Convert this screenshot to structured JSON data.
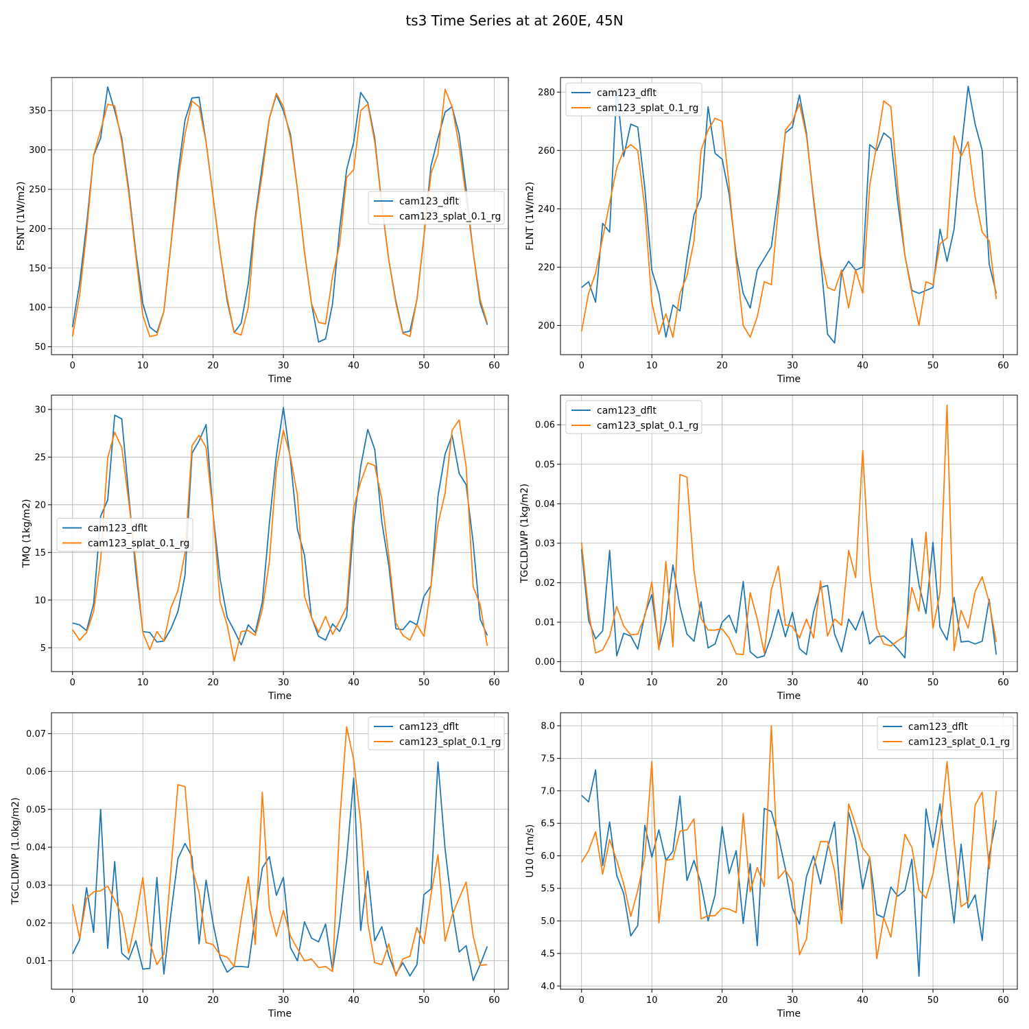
{
  "title": "ts3 Time Series at at 260E, 45N",
  "colors": {
    "series0": "#1f77b4",
    "series1": "#ff7f0e",
    "grid": "#b0b0b0"
  },
  "chart_data": [
    {
      "type": "line",
      "xlabel": "Time",
      "ylabel": "FSNT (1W/m2)",
      "xlim": [
        -3,
        62
      ],
      "ylim": [
        40,
        392
      ],
      "xticks": [
        0,
        10,
        20,
        30,
        40,
        50,
        60
      ],
      "yticks": [
        50,
        100,
        150,
        200,
        250,
        300,
        350
      ],
      "grid": true,
      "legend_position": "center-right",
      "series": [
        {
          "name": "cam123_dflt",
          "values": [
            75,
            130,
            205,
            293,
            315,
            380,
            350,
            315,
            250,
            170,
            105,
            75,
            68,
            95,
            180,
            270,
            338,
            366,
            367,
            310,
            240,
            170,
            108,
            68,
            80,
            130,
            215,
            280,
            340,
            370,
            350,
            320,
            250,
            170,
            105,
            56,
            60,
            105,
            200,
            275,
            310,
            373,
            360,
            315,
            230,
            160,
            108,
            68,
            70,
            110,
            190,
            280,
            315,
            348,
            355,
            320,
            250,
            170,
            105,
            78
          ]
        },
        {
          "name": "cam123_splat_0.1_rg",
          "values": [
            63,
            115,
            195,
            293,
            325,
            358,
            356,
            310,
            245,
            165,
            90,
            63,
            65,
            95,
            180,
            260,
            320,
            362,
            355,
            310,
            240,
            170,
            112,
            68,
            65,
            100,
            210,
            270,
            340,
            372,
            355,
            315,
            250,
            170,
            105,
            81,
            79,
            140,
            180,
            265,
            275,
            350,
            358,
            310,
            230,
            160,
            105,
            67,
            63,
            110,
            190,
            270,
            295,
            377,
            355,
            305,
            240,
            170,
            110,
            80
          ]
        }
      ]
    },
    {
      "type": "line",
      "xlabel": "Time",
      "ylabel": "FLNT (1W/m2)",
      "xlim": [
        -3,
        62
      ],
      "ylim": [
        190,
        285
      ],
      "xticks": [
        0,
        10,
        20,
        30,
        40,
        50,
        60
      ],
      "yticks": [
        200,
        220,
        240,
        260,
        280
      ],
      "grid": true,
      "legend_position": "upper-left",
      "series": [
        {
          "name": "cam123_dflt",
          "values": [
            213,
            215,
            208,
            235,
            232,
            281,
            258,
            269,
            268,
            247,
            219,
            211,
            196,
            207,
            205,
            223,
            238,
            244,
            275,
            259,
            257,
            245,
            224,
            211,
            206,
            219,
            223,
            227,
            245,
            266,
            268,
            279,
            266,
            243,
            223,
            197,
            194,
            218,
            222,
            219,
            220,
            262,
            260,
            266,
            264,
            242,
            224,
            212,
            211,
            212,
            213,
            233,
            222,
            233,
            260,
            282,
            269,
            260,
            221,
            211
          ]
        },
        {
          "name": "cam123_splat_0.1_rg",
          "values": [
            198,
            211,
            218,
            230,
            242,
            254,
            260,
            262,
            260,
            240,
            208,
            197,
            204,
            196,
            211,
            217,
            229,
            260,
            267,
            271,
            270,
            248,
            222,
            200,
            196,
            203,
            215,
            214,
            240,
            267,
            270,
            276,
            265,
            244,
            224,
            213,
            212,
            219,
            206,
            219,
            211,
            248,
            262,
            277,
            275,
            247,
            224,
            211,
            200,
            215,
            214,
            228,
            230,
            265,
            258,
            263,
            244,
            232,
            229,
            209
          ]
        }
      ]
    },
    {
      "type": "line",
      "xlabel": "Time",
      "ylabel": "TMQ (1kg/m2)",
      "xlim": [
        -3,
        62
      ],
      "ylim": [
        2.5,
        31.5
      ],
      "xticks": [
        0,
        10,
        20,
        30,
        40,
        50,
        60
      ],
      "yticks": [
        5,
        10,
        15,
        20,
        25,
        30
      ],
      "grid": true,
      "legend_position": "center-left",
      "series": [
        {
          "name": "cam123_dflt",
          "values": [
            7.6,
            7.4,
            6.8,
            9.6,
            18.8,
            20.5,
            29.4,
            29.0,
            21.0,
            13.0,
            6.7,
            6.6,
            5.6,
            5.7,
            7.0,
            8.8,
            12.6,
            25.4,
            26.7,
            28.4,
            19.0,
            12.2,
            8.2,
            6.8,
            5.3,
            7.4,
            6.6,
            9.8,
            18.0,
            25.2,
            30.2,
            24.7,
            17.4,
            14.7,
            8.2,
            6.2,
            5.8,
            7.5,
            6.7,
            8.3,
            17.9,
            24.0,
            27.9,
            25.8,
            18.2,
            13.6,
            7.0,
            6.9,
            7.8,
            7.4,
            10.4,
            11.5,
            20.9,
            25.3,
            27.3,
            23.3,
            22.1,
            16.0,
            8.0,
            6.3
          ]
        },
        {
          "name": "cam123_splat_0.1_rg",
          "values": [
            6.9,
            5.8,
            6.6,
            8.8,
            14.2,
            24.9,
            27.6,
            26.0,
            20.3,
            14.0,
            6.6,
            4.8,
            6.7,
            5.7,
            9.2,
            11.0,
            15.0,
            26.2,
            27.3,
            26.0,
            19.0,
            9.8,
            7.4,
            3.6,
            6.7,
            6.8,
            6.3,
            9.0,
            14.0,
            23.7,
            27.8,
            25.0,
            21.0,
            10.4,
            8.2,
            6.6,
            8.3,
            6.4,
            7.8,
            9.3,
            19.7,
            22.4,
            24.4,
            24.1,
            20.6,
            14.6,
            7.6,
            6.3,
            5.8,
            7.4,
            6.2,
            11.5,
            18.0,
            21.2,
            27.8,
            28.9,
            24.0,
            11.4,
            9.5,
            5.2
          ]
        }
      ]
    },
    {
      "type": "line",
      "xlabel": "Time",
      "ylabel": "TGCLDLWP (1kg/m2)",
      "xlim": [
        -3,
        62
      ],
      "ylim": [
        -0.0025,
        0.0675
      ],
      "xticks": [
        0,
        10,
        20,
        30,
        40,
        50,
        60
      ],
      "yticks": [
        0.0,
        0.01,
        0.02,
        0.03,
        0.04,
        0.05,
        0.06
      ],
      "grid": true,
      "legend_position": "upper-left",
      "series": [
        {
          "name": "cam123_dflt",
          "values": [
            0.0285,
            0.0105,
            0.0058,
            0.0078,
            0.0282,
            0.0015,
            0.0072,
            0.0065,
            0.0032,
            0.012,
            0.017,
            0.0035,
            0.0105,
            0.0245,
            0.014,
            0.007,
            0.0052,
            0.0152,
            0.0035,
            0.0045,
            0.01,
            0.0118,
            0.0073,
            0.0203,
            0.0025,
            0.001,
            0.0015,
            0.0065,
            0.0132,
            0.0063,
            0.0125,
            0.0033,
            0.0018,
            0.0125,
            0.0188,
            0.0193,
            0.007,
            0.0025,
            0.0108,
            0.008,
            0.0128,
            0.0045,
            0.0063,
            0.0065,
            0.005,
            0.0032,
            0.001,
            0.0312,
            0.0195,
            0.0122,
            0.0302,
            0.0087,
            0.0055,
            0.0163,
            0.005,
            0.0052,
            0.0045,
            0.0052,
            0.0158,
            0.0018
          ]
        },
        {
          "name": "cam123_splat_0.1_rg",
          "values": [
            0.0302,
            0.0128,
            0.0022,
            0.003,
            0.0065,
            0.014,
            0.009,
            0.0068,
            0.007,
            0.0115,
            0.0202,
            0.003,
            0.0254,
            0.0038,
            0.0474,
            0.0467,
            0.023,
            0.011,
            0.008,
            0.008,
            0.0083,
            0.006,
            0.002,
            0.0018,
            0.0175,
            0.0108,
            0.0022,
            0.0182,
            0.0242,
            0.0093,
            0.009,
            0.006,
            0.0108,
            0.006,
            0.0205,
            0.0065,
            0.0108,
            0.0092,
            0.0282,
            0.0213,
            0.0535,
            0.0225,
            0.0085,
            0.0045,
            0.004,
            0.0053,
            0.0065,
            0.0188,
            0.0128,
            0.0328,
            0.0085,
            0.0175,
            0.065,
            0.0028,
            0.013,
            0.0085,
            0.0178,
            0.0215,
            0.015,
            0.005
          ]
        }
      ]
    },
    {
      "type": "line",
      "xlabel": "Time",
      "ylabel": "TGCLDIWP (1.0kg/m2)",
      "xlim": [
        -3,
        62
      ],
      "ylim": [
        0.0025,
        0.0755
      ],
      "xticks": [
        0,
        10,
        20,
        30,
        40,
        50,
        60
      ],
      "yticks": [
        0.01,
        0.02,
        0.03,
        0.04,
        0.05,
        0.06,
        0.07
      ],
      "grid": true,
      "legend_position": "upper-right",
      "series": [
        {
          "name": "cam123_dflt",
          "values": [
            0.0118,
            0.0155,
            0.0293,
            0.0175,
            0.05,
            0.0133,
            0.0362,
            0.012,
            0.0103,
            0.0153,
            0.0078,
            0.008,
            0.032,
            0.0065,
            0.0225,
            0.037,
            0.041,
            0.0375,
            0.0145,
            0.0313,
            0.0198,
            0.0108,
            0.007,
            0.0085,
            0.0085,
            0.0083,
            0.0218,
            0.0345,
            0.0375,
            0.0273,
            0.032,
            0.0135,
            0.01,
            0.0203,
            0.016,
            0.015,
            0.0197,
            0.0075,
            0.02,
            0.0368,
            0.0583,
            0.018,
            0.0337,
            0.0153,
            0.019,
            0.0113,
            0.0065,
            0.0095,
            0.006,
            0.009,
            0.0275,
            0.029,
            0.0625,
            0.0395,
            0.024,
            0.0123,
            0.014,
            0.0048,
            0.009,
            0.0138
          ]
        },
        {
          "name": "cam123_splat_0.1_rg",
          "values": [
            0.025,
            0.016,
            0.0265,
            0.0282,
            0.0285,
            0.0297,
            0.026,
            0.0222,
            0.012,
            0.021,
            0.032,
            0.0148,
            0.009,
            0.0118,
            0.034,
            0.0565,
            0.056,
            0.0345,
            0.028,
            0.0148,
            0.0143,
            0.0115,
            0.011,
            0.0085,
            0.021,
            0.0322,
            0.0143,
            0.0545,
            0.0238,
            0.0165,
            0.0233,
            0.0165,
            0.0132,
            0.01,
            0.0105,
            0.0082,
            0.0085,
            0.0072,
            0.0465,
            0.0718,
            0.063,
            0.0465,
            0.02,
            0.0095,
            0.009,
            0.0145,
            0.006,
            0.0105,
            0.0112,
            0.0188,
            0.0145,
            0.0275,
            0.038,
            0.0152,
            0.022,
            0.0265,
            0.0308,
            0.0165,
            0.0088,
            0.009
          ]
        }
      ]
    },
    {
      "type": "line",
      "xlabel": "Time",
      "ylabel": "U10 (1m/s)",
      "xlim": [
        -3,
        62
      ],
      "ylim": [
        3.95,
        8.2
      ],
      "xticks": [
        0,
        10,
        20,
        30,
        40,
        50,
        60
      ],
      "yticks": [
        4.0,
        4.5,
        5.0,
        5.5,
        6.0,
        6.5,
        7.0,
        7.5,
        8.0
      ],
      "grid": true,
      "legend_position": "upper-right",
      "series": [
        {
          "name": "cam123_dflt",
          "values": [
            6.93,
            6.83,
            7.32,
            5.85,
            6.52,
            5.7,
            5.42,
            4.77,
            4.93,
            6.47,
            5.98,
            6.4,
            5.93,
            6.07,
            6.92,
            5.62,
            5.93,
            5.57,
            5.0,
            5.4,
            6.45,
            5.73,
            6.08,
            4.96,
            5.88,
            4.62,
            6.73,
            6.68,
            6.3,
            5.8,
            5.2,
            4.95,
            5.68,
            6.0,
            5.57,
            6.12,
            6.52,
            5.17,
            6.67,
            6.25,
            5.49,
            5.98,
            5.1,
            5.05,
            5.52,
            5.38,
            5.47,
            5.95,
            4.15,
            6.72,
            6.13,
            6.8,
            5.83,
            4.97,
            6.18,
            5.2,
            5.4,
            4.7,
            6.0,
            6.55
          ]
        },
        {
          "name": "cam123_splat_0.1_rg",
          "values": [
            5.9,
            6.08,
            6.37,
            5.72,
            6.25,
            5.93,
            5.57,
            5.07,
            5.47,
            5.98,
            7.45,
            4.97,
            5.93,
            5.95,
            6.38,
            6.4,
            6.57,
            5.03,
            5.08,
            5.08,
            5.2,
            5.18,
            5.13,
            6.65,
            5.45,
            5.82,
            5.53,
            8.0,
            5.65,
            5.78,
            5.6,
            4.48,
            4.72,
            5.82,
            6.22,
            6.22,
            5.77,
            4.96,
            6.8,
            6.48,
            6.12,
            5.98,
            4.42,
            5.05,
            4.75,
            5.52,
            6.33,
            6.13,
            5.48,
            5.35,
            5.72,
            6.37,
            7.45,
            6.23,
            5.22,
            5.3,
            6.78,
            6.98,
            5.8,
            7.0
          ]
        }
      ]
    }
  ]
}
